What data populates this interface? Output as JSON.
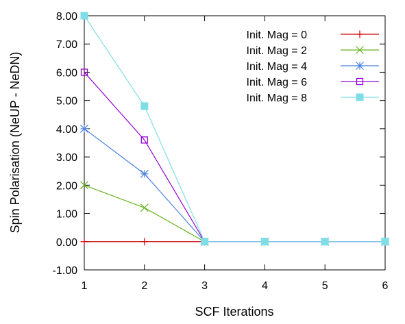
{
  "chart_data": {
    "type": "line",
    "title": "",
    "xlabel": "SCF Iterations",
    "ylabel": "Spin Polarisation (NeUP - NeDN)",
    "xlim": [
      1,
      6
    ],
    "ylim": [
      -1,
      8
    ],
    "x_ticks": [
      "1",
      "2",
      "3",
      "4",
      "5",
      "6"
    ],
    "y_ticks": [
      "-1.00",
      "0.00",
      "1.00",
      "2.00",
      "3.00",
      "4.00",
      "5.00",
      "6.00",
      "7.00",
      "8.00"
    ],
    "grid": false,
    "legend_position": "top-right",
    "x": [
      1,
      2,
      3,
      4,
      5,
      6
    ],
    "series": [
      {
        "name": "Init. Mag = 0",
        "color": "#cc0000",
        "marker": "plus",
        "values": [
          0,
          0,
          0,
          0,
          0,
          0
        ]
      },
      {
        "name": "Init. Mag = 2",
        "color": "#66b21a",
        "marker": "cross",
        "values": [
          2,
          1.2,
          0,
          0,
          0,
          0
        ]
      },
      {
        "name": "Init. Mag = 4",
        "color": "#4a7fe0",
        "marker": "star",
        "values": [
          4,
          2.4,
          0,
          0,
          0,
          0
        ]
      },
      {
        "name": "Init. Mag = 6",
        "color": "#9400d3",
        "marker": "open-square",
        "values": [
          6,
          3.6,
          0,
          0,
          0,
          0
        ]
      },
      {
        "name": "Init. Mag = 8",
        "color": "#7fdde6",
        "marker": "filled-square",
        "values": [
          8,
          4.8,
          0,
          0,
          0,
          0
        ]
      }
    ]
  }
}
